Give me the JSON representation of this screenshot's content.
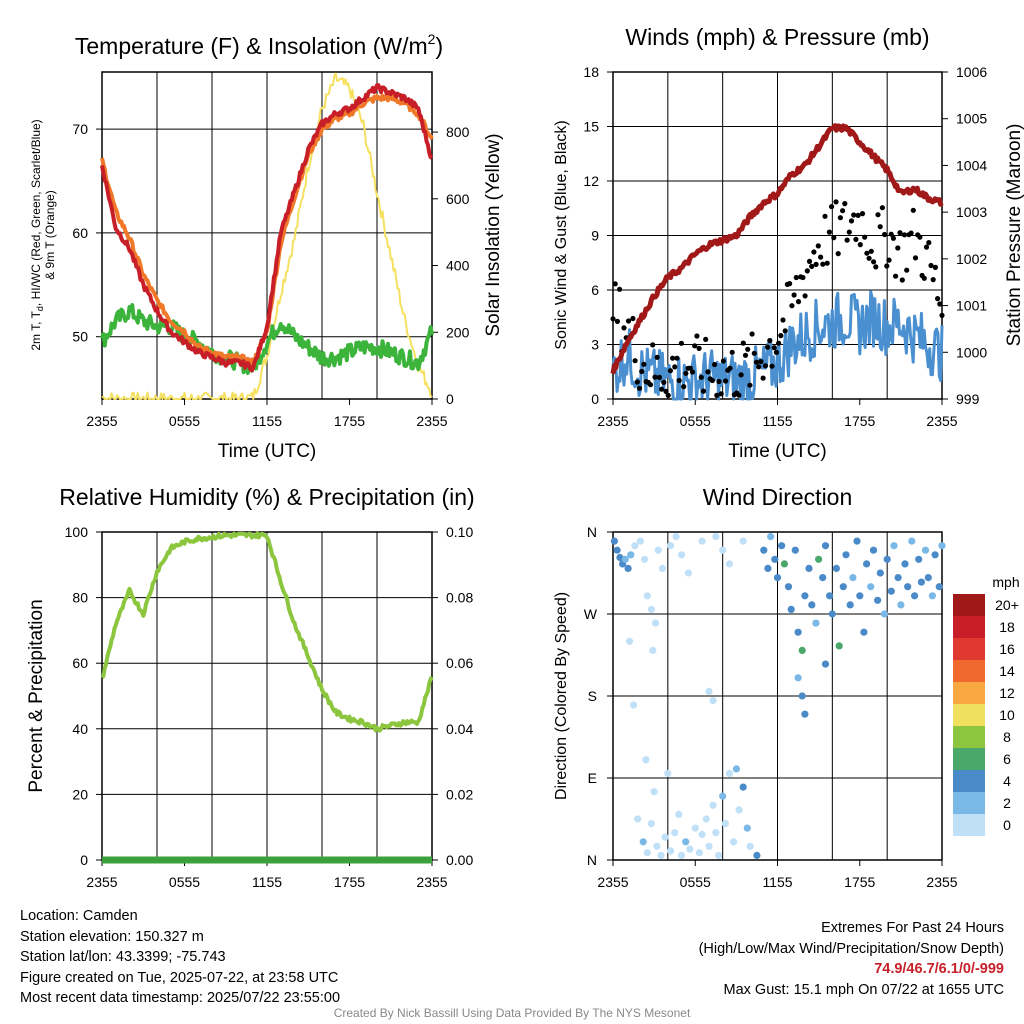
{
  "chart_data": [
    {
      "type": "line",
      "title": "Temperature (F) & Insolation (W/m",
      "title_sup": "2",
      "title_tail": ")",
      "xlabel": "Time (UTC)",
      "ylabel_lines": [
        "2m T, T",
        "d",
        ", HI/WC (Red, Green, Scarlet/Blue)",
        "& 9m T (Orange)"
      ],
      "y2label": "Solar Insolation (Yellow)",
      "x_ticks": [
        "2355",
        "0555",
        "1155",
        "1755",
        "2355"
      ],
      "ylim": [
        44,
        75.5
      ],
      "y_ticks": [
        50,
        60,
        70
      ],
      "y2lim": [
        0,
        980
      ],
      "y2_ticks": [
        0,
        200,
        400,
        600,
        800
      ],
      "x_hours": [
        0,
        1,
        2,
        3,
        4,
        5,
        6,
        7,
        8,
        9,
        10,
        11,
        12,
        13,
        14,
        15,
        16,
        17,
        18,
        19,
        20,
        21,
        22,
        23,
        24
      ],
      "series": [
        {
          "name": "2m T",
          "color": "#c81e28",
          "values": [
            66.5,
            60.5,
            58.5,
            55,
            52.5,
            50.5,
            49.5,
            48.5,
            48,
            47.5,
            47.5,
            47,
            51,
            60,
            64,
            68,
            70.5,
            71.5,
            72,
            73,
            74,
            73.5,
            73,
            72,
            67
          ]
        },
        {
          "name": "9m T",
          "color": "#f07828",
          "values": [
            67,
            62,
            59.5,
            56,
            53.5,
            51.5,
            50.5,
            49,
            48.5,
            48,
            48,
            47.5,
            50.5,
            59,
            63.5,
            67.5,
            70,
            71,
            71.5,
            72.5,
            73,
            73,
            72.5,
            71.5,
            69
          ]
        },
        {
          "name": "Td",
          "color": "#3cb43c",
          "values": [
            49.5,
            51.5,
            52.5,
            51.5,
            51,
            51,
            50,
            49.5,
            48.5,
            48,
            47.5,
            47,
            49.5,
            51.5,
            50,
            49,
            48,
            48,
            48.5,
            49,
            49,
            48.5,
            48,
            47.5,
            50.5
          ]
        },
        {
          "name": "Solar",
          "color": "#f5e060",
          "axis": "y2",
          "values": [
            5,
            0,
            0,
            0,
            0,
            0,
            0,
            0,
            0,
            0,
            0,
            5,
            130,
            320,
            480,
            700,
            870,
            960,
            930,
            820,
            620,
            430,
            240,
            100,
            20
          ]
        }
      ]
    },
    {
      "type": "line",
      "title": "Winds (mph) & Pressure (mb)",
      "xlabel": "Time (UTC)",
      "ylabel": "Sonic Wind & Gust (Blue, Black)",
      "y2label": "Station Pressure (Maroon)",
      "x_ticks": [
        "2355",
        "0555",
        "1155",
        "1755",
        "2355"
      ],
      "ylim": [
        0,
        18
      ],
      "y_ticks": [
        0,
        3,
        6,
        9,
        12,
        15,
        18
      ],
      "y2lim": [
        999,
        1006
      ],
      "y2_ticks": [
        999,
        1000,
        1001,
        1002,
        1003,
        1004,
        1005,
        1006
      ],
      "x_hours": [
        0,
        1,
        2,
        3,
        4,
        5,
        6,
        7,
        8,
        9,
        10,
        11,
        12,
        13,
        14,
        15,
        16,
        17,
        18,
        19,
        20,
        21,
        22,
        23,
        24
      ],
      "series": [
        {
          "name": "Sonic Wind",
          "color": "#4a90d0",
          "values": [
            1.5,
            2.5,
            1.5,
            1.2,
            1,
            1,
            1,
            1.2,
            1,
            1,
            1.2,
            1.5,
            2,
            3,
            3.5,
            4,
            4.2,
            4.5,
            4,
            4.5,
            4,
            4.2,
            3.5,
            3,
            2.5
          ]
        },
        {
          "name": "Gust",
          "color": "#000000",
          "values": [
            5,
            4,
            2,
            1.5,
            1.5,
            2,
            1.8,
            1.5,
            1.5,
            1.5,
            1.8,
            2.5,
            3.5,
            5,
            7,
            8.5,
            9,
            9.5,
            10,
            8.5,
            9,
            8,
            9,
            7.5,
            5
          ]
        },
        {
          "name": "Pressure",
          "color": "#a01818",
          "axis": "y2",
          "values": [
            999.6,
            1000.2,
            1000.7,
            1001.2,
            1001.6,
            1001.8,
            1002.1,
            1002.3,
            1002.4,
            1002.5,
            1002.9,
            1003.2,
            1003.4,
            1003.8,
            1004.0,
            1004.4,
            1004.8,
            1004.8,
            1004.5,
            1004.2,
            1003.9,
            1003.4,
            1003.5,
            1003.3,
            1003.2
          ]
        }
      ]
    },
    {
      "type": "line",
      "title": "Relative Humidity (%) & Precipitation (in)",
      "ylabel": "Percent & Precipitation",
      "x_ticks": [
        "2355",
        "0555",
        "1155",
        "1755",
        "2355"
      ],
      "ylim": [
        0,
        100
      ],
      "y_ticks": [
        0,
        20,
        40,
        60,
        80,
        100
      ],
      "y2lim": [
        0,
        0.1
      ],
      "y2_ticks": [
        "0.00",
        "0.02",
        "0.04",
        "0.06",
        "0.08",
        "0.10"
      ],
      "x_hours": [
        0,
        1,
        2,
        3,
        4,
        5,
        6,
        7,
        8,
        9,
        10,
        11,
        12,
        13,
        14,
        15,
        16,
        17,
        18,
        19,
        20,
        21,
        22,
        23,
        24
      ],
      "series": [
        {
          "name": "RH",
          "color": "#8cc63e",
          "values": [
            55,
            72,
            82,
            75,
            88,
            95,
            97,
            98,
            98.5,
            99,
            99,
            99,
            99,
            85,
            72,
            62,
            52,
            45,
            43,
            42,
            40,
            41,
            42,
            42,
            56
          ]
        },
        {
          "name": "Precip",
          "color": "#3ca03c",
          "axis": "y2",
          "values": [
            0,
            0,
            0,
            0,
            0,
            0,
            0,
            0,
            0,
            0,
            0,
            0,
            0,
            0,
            0,
            0,
            0,
            0,
            0,
            0,
            0,
            0,
            0,
            0,
            0
          ]
        }
      ]
    },
    {
      "type": "scatter",
      "title": "Wind Direction",
      "ylabel": "Direction (Colored By Speed)",
      "x_ticks": [
        "2355",
        "0555",
        "1155",
        "1755",
        "2355"
      ],
      "y_ticks": [
        "N",
        "E",
        "S",
        "W",
        "N"
      ],
      "ylim": [
        0,
        360
      ],
      "colorbar": {
        "title": "mph",
        "labels": [
          "20+",
          "18",
          "16",
          "14",
          "12",
          "10",
          "8",
          "6",
          "4",
          "2",
          "0"
        ],
        "colors": [
          "#a01818",
          "#c81e28",
          "#e03a30",
          "#f06a30",
          "#f8a840",
          "#f0e060",
          "#8cc63e",
          "#4aa86a",
          "#4a8ac8",
          "#7ab8e8",
          "#c0e0f8"
        ]
      },
      "points": [
        {
          "x": 0.1,
          "y": 350,
          "s": 4
        },
        {
          "x": 0.3,
          "y": 340,
          "s": 4
        },
        {
          "x": 0.5,
          "y": 332,
          "s": 4
        },
        {
          "x": 0.7,
          "y": 325,
          "s": 4
        },
        {
          "x": 0.9,
          "y": 330,
          "s": 2
        },
        {
          "x": 1.1,
          "y": 320,
          "s": 4
        },
        {
          "x": 1.3,
          "y": 335,
          "s": 2
        },
        {
          "x": 1.6,
          "y": 345,
          "s": 0
        },
        {
          "x": 2.0,
          "y": 350,
          "s": 0
        },
        {
          "x": 2.3,
          "y": 330,
          "s": 0
        },
        {
          "x": 2.5,
          "y": 290,
          "s": 0
        },
        {
          "x": 2.8,
          "y": 275,
          "s": 0
        },
        {
          "x": 3.1,
          "y": 260,
          "s": 0
        },
        {
          "x": 3.3,
          "y": 340,
          "s": 0
        },
        {
          "x": 3.6,
          "y": 320,
          "s": 0
        },
        {
          "x": 4.2,
          "y": 345,
          "s": 0
        },
        {
          "x": 4.6,
          "y": 355,
          "s": 0
        },
        {
          "x": 5.0,
          "y": 335,
          "s": 0
        },
        {
          "x": 5.5,
          "y": 315,
          "s": 0
        },
        {
          "x": 6.5,
          "y": 350,
          "s": 0
        },
        {
          "x": 7.5,
          "y": 355,
          "s": 0
        },
        {
          "x": 8.0,
          "y": 340,
          "s": 0
        },
        {
          "x": 8.5,
          "y": 325,
          "s": 0
        },
        {
          "x": 9.5,
          "y": 350,
          "s": 0
        },
        {
          "x": 1.2,
          "y": 240,
          "s": 0
        },
        {
          "x": 2.9,
          "y": 230,
          "s": 0
        },
        {
          "x": 1.5,
          "y": 170,
          "s": 0
        },
        {
          "x": 2.4,
          "y": 110,
          "s": 0
        },
        {
          "x": 1.8,
          "y": 45,
          "s": 0
        },
        {
          "x": 2.2,
          "y": 20,
          "s": 2
        },
        {
          "x": 2.5,
          "y": 8,
          "s": 0
        },
        {
          "x": 2.8,
          "y": 40,
          "s": 0
        },
        {
          "x": 3.0,
          "y": 75,
          "s": 0
        },
        {
          "x": 3.2,
          "y": 15,
          "s": 0
        },
        {
          "x": 3.5,
          "y": 5,
          "s": 0
        },
        {
          "x": 3.8,
          "y": 25,
          "s": 0
        },
        {
          "x": 4.0,
          "y": 95,
          "s": 0
        },
        {
          "x": 4.2,
          "y": 10,
          "s": 0
        },
        {
          "x": 4.5,
          "y": 30,
          "s": 0
        },
        {
          "x": 4.8,
          "y": 50,
          "s": 0
        },
        {
          "x": 5.0,
          "y": 5,
          "s": 0
        },
        {
          "x": 5.3,
          "y": 20,
          "s": 2
        },
        {
          "x": 5.6,
          "y": 12,
          "s": 0
        },
        {
          "x": 6.0,
          "y": 35,
          "s": 0
        },
        {
          "x": 6.3,
          "y": 8,
          "s": 0
        },
        {
          "x": 6.5,
          "y": 28,
          "s": 0
        },
        {
          "x": 6.8,
          "y": 45,
          "s": 0
        },
        {
          "x": 7.0,
          "y": 15,
          "s": 0
        },
        {
          "x": 7.3,
          "y": 60,
          "s": 0
        },
        {
          "x": 7.5,
          "y": 30,
          "s": 0
        },
        {
          "x": 7.7,
          "y": 5,
          "s": 0
        },
        {
          "x": 8.0,
          "y": 70,
          "s": 2
        },
        {
          "x": 8.2,
          "y": 40,
          "s": 0
        },
        {
          "x": 8.5,
          "y": 95,
          "s": 0
        },
        {
          "x": 8.8,
          "y": 20,
          "s": 0
        },
        {
          "x": 9.0,
          "y": 100,
          "s": 2
        },
        {
          "x": 9.2,
          "y": 55,
          "s": 0
        },
        {
          "x": 9.5,
          "y": 80,
          "s": 4
        },
        {
          "x": 9.8,
          "y": 35,
          "s": 2
        },
        {
          "x": 10.0,
          "y": 15,
          "s": 0
        },
        {
          "x": 7.0,
          "y": 185,
          "s": 0
        },
        {
          "x": 7.3,
          "y": 175,
          "s": 0
        },
        {
          "x": 10.5,
          "y": 5,
          "s": 4
        },
        {
          "x": 11.0,
          "y": 340,
          "s": 4
        },
        {
          "x": 11.3,
          "y": 320,
          "s": 4
        },
        {
          "x": 11.5,
          "y": 355,
          "s": 2
        },
        {
          "x": 11.8,
          "y": 330,
          "s": 4
        },
        {
          "x": 12.0,
          "y": 310,
          "s": 4
        },
        {
          "x": 12.3,
          "y": 345,
          "s": 4
        },
        {
          "x": 12.5,
          "y": 325,
          "s": 6
        },
        {
          "x": 12.8,
          "y": 300,
          "s": 4
        },
        {
          "x": 13.0,
          "y": 275,
          "s": 4
        },
        {
          "x": 13.3,
          "y": 340,
          "s": 4
        },
        {
          "x": 13.5,
          "y": 250,
          "s": 4
        },
        {
          "x": 13.8,
          "y": 230,
          "s": 6
        },
        {
          "x": 14.0,
          "y": 290,
          "s": 4
        },
        {
          "x": 14.3,
          "y": 320,
          "s": 4
        },
        {
          "x": 14.5,
          "y": 280,
          "s": 4
        },
        {
          "x": 14.8,
          "y": 260,
          "s": 2
        },
        {
          "x": 15.0,
          "y": 330,
          "s": 6
        },
        {
          "x": 15.3,
          "y": 310,
          "s": 4
        },
        {
          "x": 15.5,
          "y": 345,
          "s": 4
        },
        {
          "x": 15.8,
          "y": 290,
          "s": 4
        },
        {
          "x": 16.0,
          "y": 270,
          "s": 4
        },
        {
          "x": 16.3,
          "y": 320,
          "s": 4
        },
        {
          "x": 16.5,
          "y": 235,
          "s": 6
        },
        {
          "x": 16.8,
          "y": 300,
          "s": 4
        },
        {
          "x": 17.0,
          "y": 335,
          "s": 4
        },
        {
          "x": 17.3,
          "y": 280,
          "s": 4
        },
        {
          "x": 17.5,
          "y": 310,
          "s": 2
        },
        {
          "x": 17.8,
          "y": 350,
          "s": 4
        },
        {
          "x": 18.0,
          "y": 290,
          "s": 4
        },
        {
          "x": 18.3,
          "y": 250,
          "s": 4
        },
        {
          "x": 18.5,
          "y": 325,
          "s": 4
        },
        {
          "x": 18.8,
          "y": 300,
          "s": 2
        },
        {
          "x": 19.0,
          "y": 340,
          "s": 4
        },
        {
          "x": 19.3,
          "y": 285,
          "s": 4
        },
        {
          "x": 19.5,
          "y": 315,
          "s": 4
        },
        {
          "x": 19.8,
          "y": 270,
          "s": 2
        },
        {
          "x": 20.0,
          "y": 330,
          "s": 4
        },
        {
          "x": 20.3,
          "y": 295,
          "s": 4
        },
        {
          "x": 20.5,
          "y": 345,
          "s": 2
        },
        {
          "x": 20.8,
          "y": 310,
          "s": 4
        },
        {
          "x": 21.0,
          "y": 280,
          "s": 2
        },
        {
          "x": 21.3,
          "y": 325,
          "s": 4
        },
        {
          "x": 21.5,
          "y": 300,
          "s": 4
        },
        {
          "x": 21.8,
          "y": 350,
          "s": 2
        },
        {
          "x": 22.0,
          "y": 290,
          "s": 4
        },
        {
          "x": 22.3,
          "y": 330,
          "s": 4
        },
        {
          "x": 22.5,
          "y": 305,
          "s": 4
        },
        {
          "x": 22.8,
          "y": 340,
          "s": 2
        },
        {
          "x": 23.0,
          "y": 310,
          "s": 4
        },
        {
          "x": 23.3,
          "y": 290,
          "s": 2
        },
        {
          "x": 23.5,
          "y": 335,
          "s": 4
        },
        {
          "x": 23.8,
          "y": 300,
          "s": 4
        },
        {
          "x": 24.0,
          "y": 345,
          "s": 2
        },
        {
          "x": 13.5,
          "y": 200,
          "s": 2
        },
        {
          "x": 13.8,
          "y": 180,
          "s": 4
        },
        {
          "x": 14.0,
          "y": 160,
          "s": 4
        },
        {
          "x": 15.5,
          "y": 215,
          "s": 4
        }
      ]
    }
  ],
  "footer": {
    "location": "Location: Camden",
    "elevation": "Station elevation: 150.327 m",
    "latlon": "Station lat/lon: 43.3399; -75.743",
    "created": "Figure created on Tue, 2025-07-22, at 23:58 UTC",
    "timestamp": "Most recent data timestamp: 2025/07/22 23:55:00",
    "extremes_title": "Extremes For Past 24 Hours",
    "extremes_subtitle": "(High/Low/Max Wind/Precipitation/Snow Depth)",
    "extremes_values": "74.9/46.7/6.1/0/-999",
    "max_gust": "Max Gust: 15.1 mph On 07/22 at 1655 UTC",
    "credit": "Created By Nick Bassill Using Data Provided By The NYS Mesonet"
  }
}
